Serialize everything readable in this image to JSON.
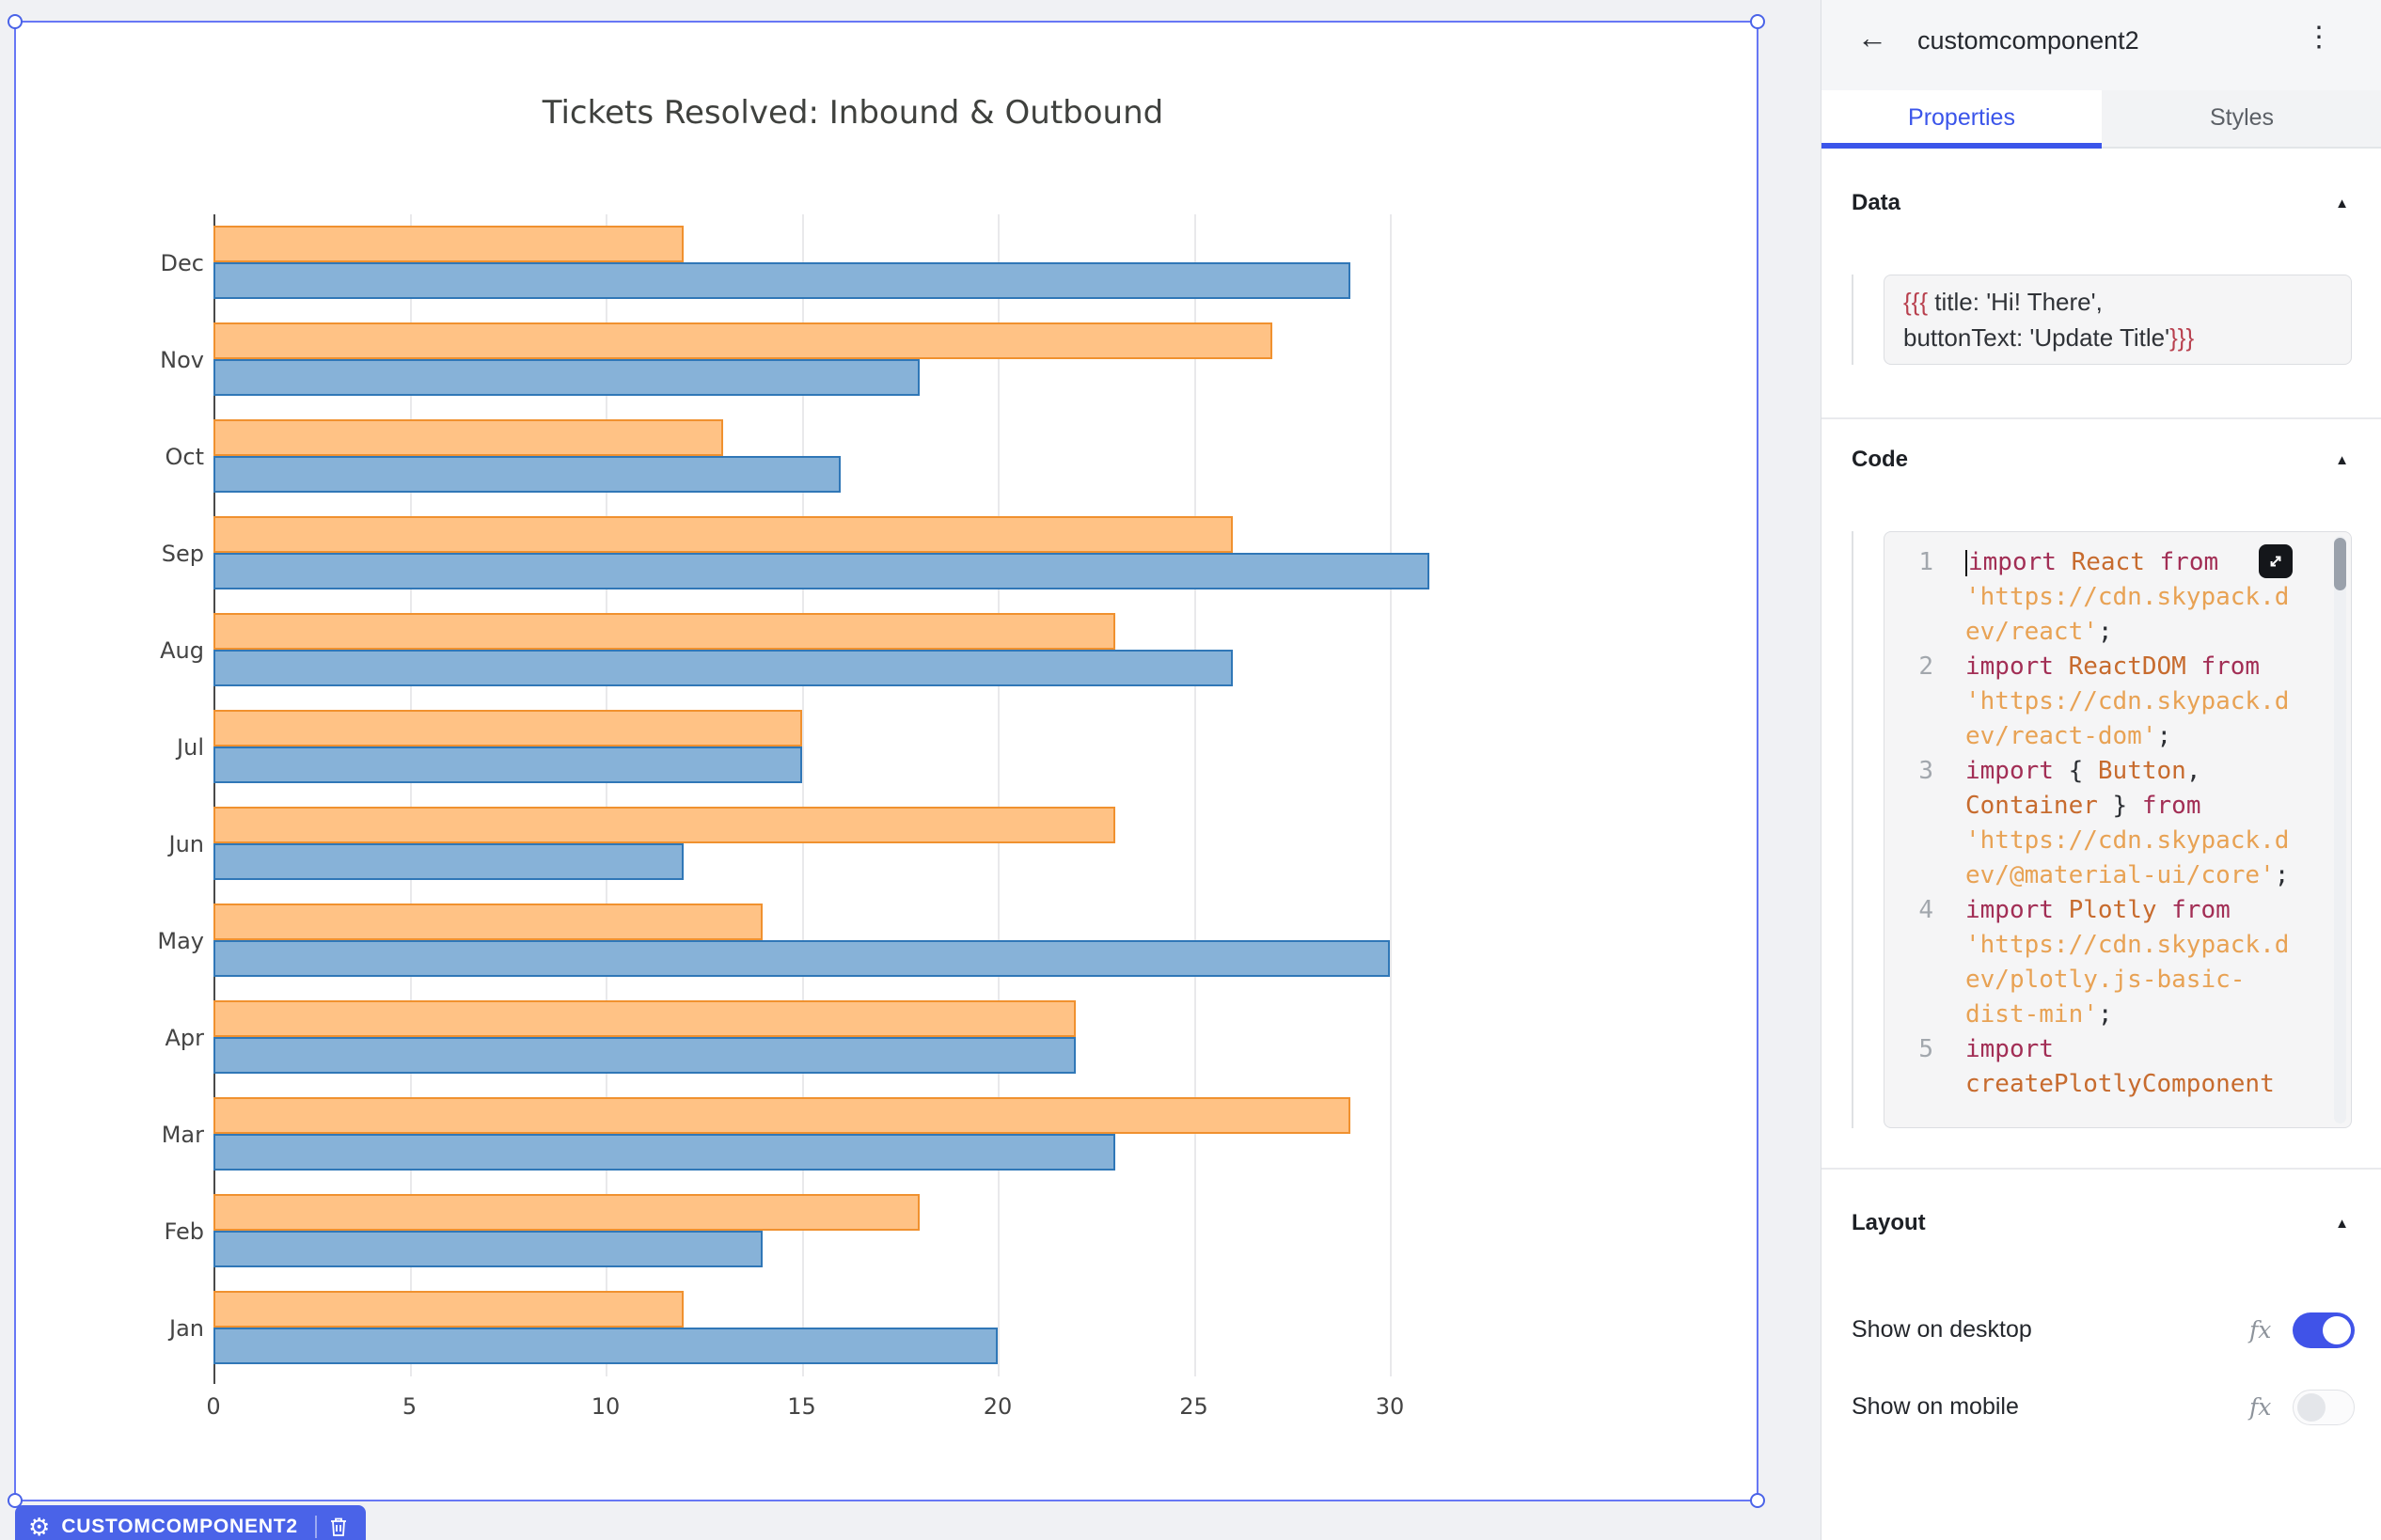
{
  "chart_data": {
    "type": "bar",
    "orientation": "horizontal",
    "title": "Tickets Resolved: Inbound & Outbound",
    "categories_bottom_to_top": [
      "Jan",
      "Feb",
      "Mar",
      "Apr",
      "May",
      "Jun",
      "Jul",
      "Aug",
      "Sep",
      "Oct",
      "Nov",
      "Dec"
    ],
    "series": [
      {
        "name": "Inbound",
        "fill": "#87b2d8",
        "line": "#3077b7",
        "values": [
          20,
          14,
          23,
          22,
          30,
          12,
          15,
          26,
          31,
          16,
          18,
          29
        ]
      },
      {
        "name": "Outbound",
        "fill": "#ffc285",
        "line": "#f0912f",
        "values": [
          12,
          18,
          29,
          22,
          14,
          23,
          15,
          23,
          26,
          13,
          27,
          12
        ]
      }
    ],
    "xticks": [
      0,
      5,
      10,
      15,
      20,
      25,
      30
    ],
    "xlim": [
      0,
      30.7
    ],
    "grid": "vertical-only",
    "legend": "none",
    "group_order_note": "within each month group the Outbound bar is drawn above the Inbound bar; months run Dec (top) to Jan (bottom)"
  },
  "canvas": {
    "badge": {
      "label": "CUSTOMCOMPONENT2"
    }
  },
  "panel": {
    "header": {
      "back": "←",
      "title": "customcomponent2",
      "menu": "⋮"
    },
    "tabs": [
      {
        "label": "Properties",
        "active": true
      },
      {
        "label": "Styles",
        "active": false
      }
    ],
    "sections": {
      "data": {
        "label": "Data",
        "open_braces": "{{{",
        "line1_rest": " title: 'Hi! There',",
        "line2_rest": "buttonText: 'Update Title'",
        "close_braces": "}}}"
      },
      "code": {
        "label": "Code",
        "rows": [
          {
            "n": "1",
            "toks": [
              [
                "kw",
                "import"
              ],
              [
                "pun",
                " "
              ],
              [
                "id",
                "React"
              ],
              [
                "pun",
                " "
              ],
              [
                "kw",
                "from"
              ]
            ]
          },
          {
            "n": "",
            "toks": [
              [
                "str",
                "'https://cdn.skypack.d"
              ]
            ]
          },
          {
            "n": "",
            "toks": [
              [
                "str",
                "ev/react'"
              ],
              [
                "pun",
                ";"
              ]
            ]
          },
          {
            "n": "2",
            "toks": [
              [
                "kw",
                "import"
              ],
              [
                "pun",
                " "
              ],
              [
                "id",
                "ReactDOM"
              ],
              [
                "pun",
                " "
              ],
              [
                "kw",
                "from"
              ]
            ]
          },
          {
            "n": "",
            "toks": [
              [
                "str",
                "'https://cdn.skypack.d"
              ]
            ]
          },
          {
            "n": "",
            "toks": [
              [
                "str",
                "ev/react-dom'"
              ],
              [
                "pun",
                ";"
              ]
            ]
          },
          {
            "n": "3",
            "toks": [
              [
                "kw",
                "import"
              ],
              [
                "pun",
                " { "
              ],
              [
                "id",
                "Button"
              ],
              [
                "pun",
                ","
              ]
            ]
          },
          {
            "n": "",
            "toks": [
              [
                "id",
                "Container"
              ],
              [
                "pun",
                " } "
              ],
              [
                "kw",
                "from"
              ]
            ]
          },
          {
            "n": "",
            "toks": [
              [
                "str",
                "'https://cdn.skypack.d"
              ]
            ]
          },
          {
            "n": "",
            "toks": [
              [
                "str",
                "ev/@material-ui/core'"
              ],
              [
                "pun",
                ";"
              ]
            ]
          },
          {
            "n": "4",
            "toks": [
              [
                "kw",
                "import"
              ],
              [
                "pun",
                " "
              ],
              [
                "id",
                "Plotly"
              ],
              [
                "pun",
                " "
              ],
              [
                "kw",
                "from"
              ]
            ]
          },
          {
            "n": "",
            "toks": [
              [
                "str",
                "'https://cdn.skypack.d"
              ]
            ]
          },
          {
            "n": "",
            "toks": [
              [
                "str",
                "ev/plotly.js-basic-"
              ]
            ]
          },
          {
            "n": "",
            "toks": [
              [
                "str",
                "dist-min'"
              ],
              [
                "pun",
                ";"
              ]
            ]
          },
          {
            "n": "5",
            "toks": [
              [
                "kw",
                "import"
              ]
            ]
          },
          {
            "n": "",
            "toks": [
              [
                "id",
                "createPlotlyComponent"
              ]
            ]
          }
        ]
      },
      "layout": {
        "label": "Layout",
        "rows": [
          {
            "label": "Show on desktop",
            "fx": "fx",
            "on": true
          },
          {
            "label": "Show on mobile",
            "fx": "fx",
            "on": false
          }
        ]
      }
    }
  }
}
